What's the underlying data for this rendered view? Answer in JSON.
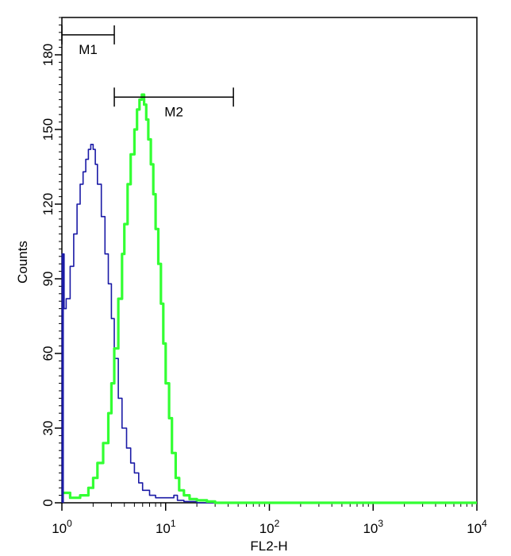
{
  "chart_data": {
    "type": "line",
    "xlabel": "FL2-H",
    "ylabel": "Counts",
    "xscale": "log",
    "xlim": [
      1,
      10000
    ],
    "ylim": [
      0,
      195
    ],
    "x_ticks": [
      {
        "value": 1,
        "base": "10",
        "exp": "0"
      },
      {
        "value": 10,
        "base": "10",
        "exp": "1"
      },
      {
        "value": 100,
        "base": "10",
        "exp": "2"
      },
      {
        "value": 1000,
        "base": "10",
        "exp": "3"
      },
      {
        "value": 10000,
        "base": "10",
        "exp": "4"
      }
    ],
    "y_ticks": [
      0,
      30,
      60,
      90,
      120,
      150,
      180
    ],
    "grid": false,
    "series": [
      {
        "color": "#1a1aa6",
        "x": [
          1.0,
          1.05,
          1.1,
          1.2,
          1.3,
          1.4,
          1.5,
          1.6,
          1.7,
          1.8,
          1.9,
          2.0,
          2.1,
          2.2,
          2.4,
          2.6,
          2.8,
          3.0,
          3.2,
          3.5,
          3.8,
          4.2,
          4.6,
          5.0,
          5.5,
          6.0,
          7.0,
          8.0,
          10.0,
          12.0,
          13.0,
          15.0,
          20.0,
          30.0,
          100.0,
          1000.0,
          10000.0
        ],
        "values": [
          100,
          78,
          82,
          95,
          108,
          120,
          128,
          133,
          138,
          142,
          144,
          142,
          136,
          128,
          115,
          100,
          88,
          74,
          58,
          42,
          30,
          22,
          16,
          12,
          8,
          5,
          3,
          2,
          2,
          3,
          1,
          0.5,
          0,
          0,
          0,
          0,
          0
        ]
      },
      {
        "color": "#33ff33",
        "x": [
          1.0,
          1.2,
          1.5,
          1.8,
          2.0,
          2.2,
          2.5,
          2.8,
          3.0,
          3.2,
          3.5,
          3.8,
          4.0,
          4.3,
          4.6,
          5.0,
          5.3,
          5.6,
          5.9,
          6.2,
          6.5,
          6.8,
          7.2,
          7.6,
          8.0,
          8.5,
          9.0,
          9.5,
          10.0,
          10.8,
          11.5,
          12.5,
          13.5,
          15.0,
          17.0,
          20.0,
          25.0,
          30.0,
          100.0,
          1000.0,
          10000.0
        ],
        "values": [
          4,
          2,
          3,
          6,
          10,
          16,
          24,
          36,
          48,
          62,
          82,
          100,
          112,
          128,
          140,
          150,
          158,
          162,
          164,
          160,
          154,
          146,
          136,
          124,
          110,
          96,
          80,
          64,
          48,
          34,
          20,
          10,
          5,
          3,
          1.5,
          1,
          0.5,
          0,
          0,
          0,
          0
        ]
      }
    ],
    "markers": [
      {
        "label": "M1",
        "from": 1.0,
        "to": 3.2,
        "level": 188
      },
      {
        "label": "M2",
        "from": 3.2,
        "to": 45.0,
        "level": 163
      }
    ]
  }
}
